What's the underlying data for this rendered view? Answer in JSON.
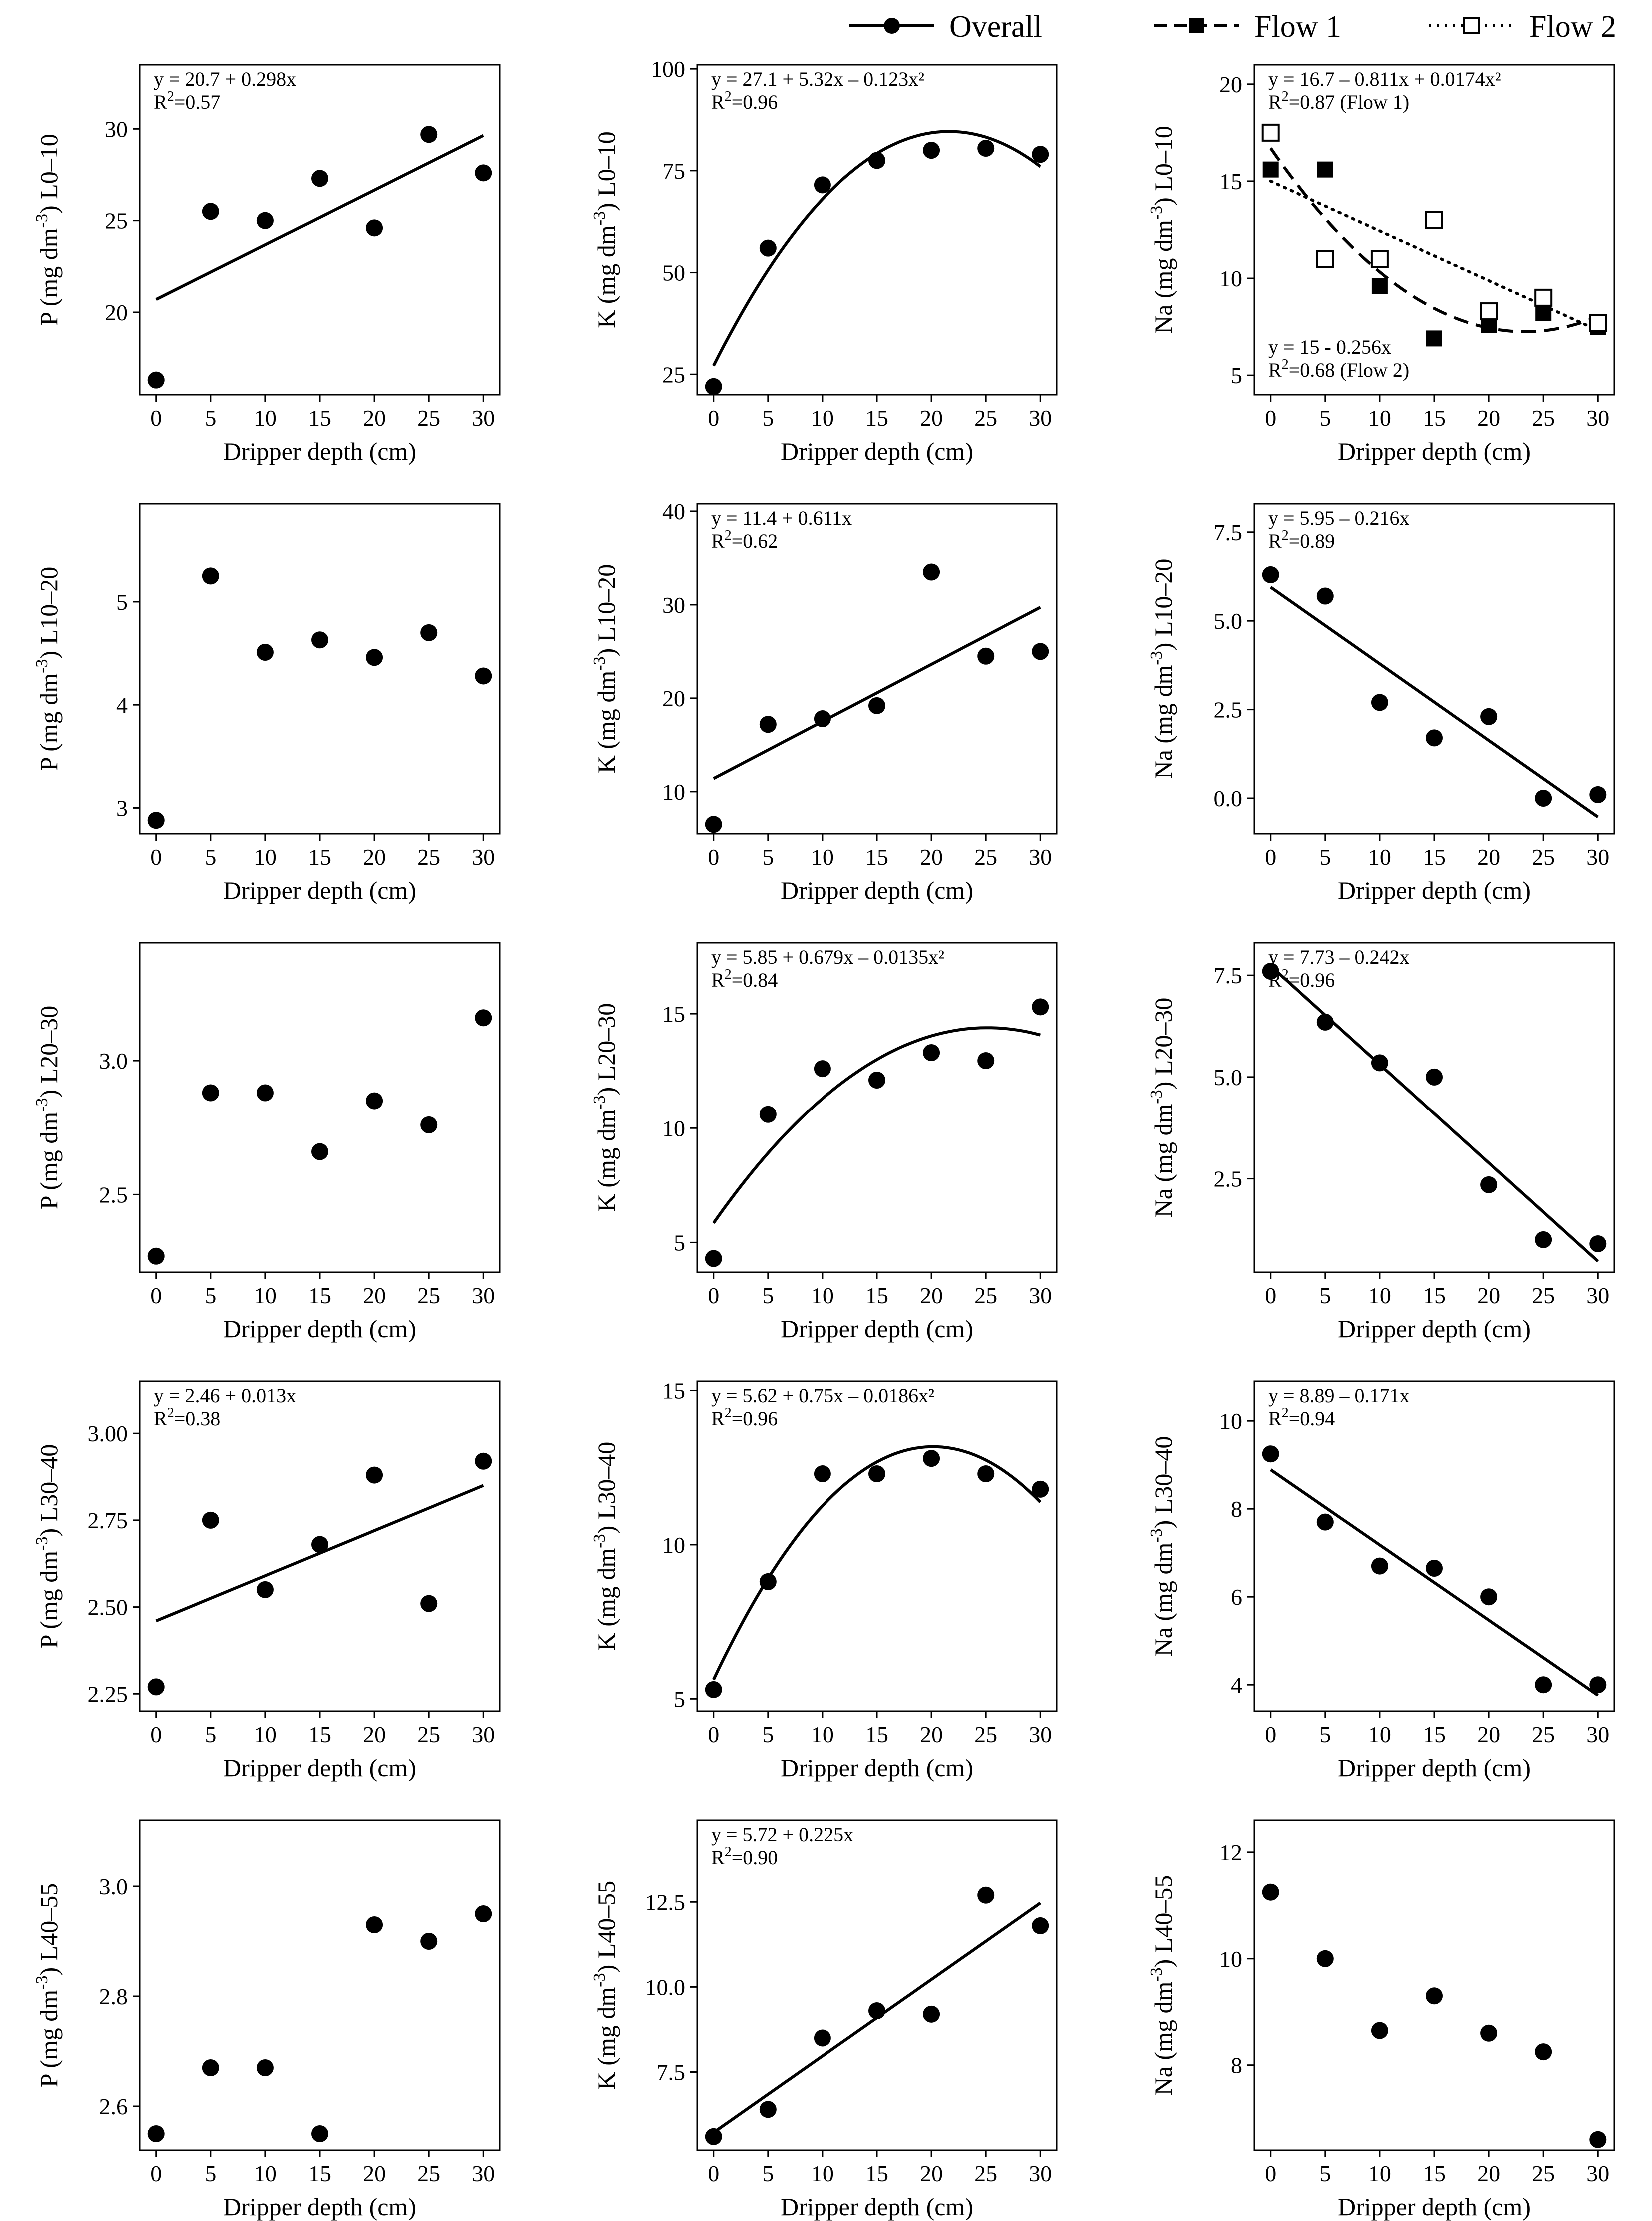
{
  "legend": {
    "entries": [
      {
        "label": "Overall",
        "line": "solid",
        "marker": "circle"
      },
      {
        "label": "Flow 1",
        "line": "dashed",
        "marker": "square-filled"
      },
      {
        "label": "Flow 2",
        "line": "dotted",
        "marker": "square-open"
      }
    ]
  },
  "chart_data": [
    {
      "type": "scatter",
      "id": "p-l0-10",
      "ylabel": "P (mg dm-3) L0–10",
      "ylabel_parts": {
        "pre": "P (mg dm",
        "sup": "-3",
        "post": ") L0–10"
      },
      "xlabel": "Dripper depth (cm)",
      "x": [
        0,
        5,
        10,
        15,
        20,
        25,
        30
      ],
      "xlim": [
        -1.5,
        31.5
      ],
      "xticks": [
        0,
        5,
        10,
        15,
        20,
        25,
        30
      ],
      "ylim": [
        15.5,
        33.5
      ],
      "yticks": [
        20,
        25,
        30
      ],
      "series": [
        {
          "name": "Overall",
          "marker": "circle",
          "values": [
            16.3,
            25.5,
            25.0,
            27.3,
            24.6,
            29.7,
            27.6
          ],
          "fit": {
            "coef": [
              20.7,
              0.298
            ],
            "style": "solid"
          }
        }
      ],
      "equations": [
        {
          "text": "y = 20.7 + 0.298x",
          "r2": "0.57",
          "r2_suffix": ""
        }
      ]
    },
    {
      "type": "scatter",
      "id": "k-l0-10",
      "ylabel": "K (mg dm-3) L0–10",
      "ylabel_parts": {
        "pre": "K (mg dm",
        "sup": "-3",
        "post": ") L0–10"
      },
      "xlabel": "Dripper depth (cm)",
      "x": [
        0,
        5,
        10,
        15,
        20,
        25,
        30
      ],
      "xlim": [
        -1.5,
        31.5
      ],
      "xticks": [
        0,
        5,
        10,
        15,
        20,
        25,
        30
      ],
      "ylim": [
        20,
        101
      ],
      "yticks": [
        25,
        50,
        75,
        100
      ],
      "series": [
        {
          "name": "Overall",
          "marker": "circle",
          "values": [
            22,
            56,
            71.5,
            77.5,
            80,
            80.5,
            79
          ],
          "fit": {
            "coef": [
              27.1,
              5.32,
              -0.123
            ],
            "style": "solid"
          }
        }
      ],
      "equations": [
        {
          "text": "y = 27.1 + 5.32x – 0.123x²",
          "r2": "0.96",
          "r2_suffix": ""
        }
      ]
    },
    {
      "type": "scatter",
      "id": "na-l0-10",
      "ylabel": "Na (mg dm-3) L0–10",
      "ylabel_parts": {
        "pre": "Na (mg dm",
        "sup": "-3",
        "post": ") L0–10"
      },
      "xlabel": "Dripper depth (cm)",
      "x": [
        0,
        5,
        10,
        15,
        20,
        25,
        30
      ],
      "xlim": [
        -1.5,
        31.5
      ],
      "xticks": [
        0,
        5,
        10,
        15,
        20,
        25,
        30
      ],
      "ylim": [
        4,
        21
      ],
      "yticks": [
        5,
        10,
        15,
        20
      ],
      "series": [
        {
          "name": "Flow 1",
          "marker": "square-filled",
          "values": [
            15.6,
            15.6,
            9.6,
            6.9,
            7.6,
            8.2,
            7.5
          ],
          "fit": {
            "coef": [
              16.7,
              -0.811,
              0.0174
            ],
            "style": "dashed"
          }
        },
        {
          "name": "Flow 2",
          "marker": "square-open",
          "values": [
            17.5,
            11.0,
            11.0,
            13.0,
            8.3,
            9.0,
            7.7
          ],
          "fit": {
            "coef": [
              15,
              -0.256
            ],
            "style": "dotted"
          }
        }
      ],
      "equations": [
        {
          "text": "y = 16.7 – 0.811x + 0.0174x²",
          "r2": "0.87",
          "r2_suffix": " (Flow 1)"
        },
        {
          "text": "y = 15 - 0.256x",
          "r2": "0.68",
          "r2_suffix": " (Flow 2)"
        }
      ]
    },
    {
      "type": "scatter",
      "id": "p-l10-20",
      "ylabel": "P (mg dm-3) L10–20",
      "ylabel_parts": {
        "pre": "P (mg dm",
        "sup": "-3",
        "post": ") L10–20"
      },
      "xlabel": "Dripper depth (cm)",
      "x": [
        0,
        5,
        10,
        15,
        20,
        25,
        30
      ],
      "xlim": [
        -1.5,
        31.5
      ],
      "xticks": [
        0,
        5,
        10,
        15,
        20,
        25,
        30
      ],
      "ylim": [
        2.75,
        5.95
      ],
      "yticks": [
        3,
        4,
        5
      ],
      "series": [
        {
          "name": "Overall",
          "marker": "circle",
          "values": [
            2.88,
            5.25,
            4.51,
            4.63,
            4.46,
            4.7,
            4.28
          ]
        }
      ],
      "equations": []
    },
    {
      "type": "scatter",
      "id": "k-l10-20",
      "ylabel": "K (mg dm-3) L10–20",
      "ylabel_parts": {
        "pre": "K (mg dm",
        "sup": "-3",
        "post": ") L10–20"
      },
      "xlabel": "Dripper depth (cm)",
      "x": [
        0,
        5,
        10,
        15,
        20,
        25,
        30
      ],
      "xlim": [
        -1.5,
        31.5
      ],
      "xticks": [
        0,
        5,
        10,
        15,
        20,
        25,
        30
      ],
      "ylim": [
        5.5,
        40.8
      ],
      "yticks": [
        10,
        20,
        30,
        40
      ],
      "series": [
        {
          "name": "Overall",
          "marker": "circle",
          "values": [
            6.5,
            17.2,
            17.8,
            19.2,
            33.5,
            24.5,
            25.0
          ],
          "fit": {
            "coef": [
              11.4,
              0.611
            ],
            "style": "solid"
          }
        }
      ],
      "equations": [
        {
          "text": "y = 11.4 + 0.611x",
          "r2": "0.62",
          "r2_suffix": ""
        }
      ]
    },
    {
      "type": "scatter",
      "id": "na-l10-20",
      "ylabel": "Na (mg dm-3) L10–20",
      "ylabel_parts": {
        "pre": "Na (mg dm",
        "sup": "-3",
        "post": ") L10–20"
      },
      "xlabel": "Dripper depth (cm)",
      "x": [
        0,
        5,
        10,
        15,
        20,
        25,
        30
      ],
      "xlim": [
        -1.5,
        31.5
      ],
      "xticks": [
        0,
        5,
        10,
        15,
        20,
        25,
        30
      ],
      "yticks": [
        0.0,
        2.5,
        5.0,
        7.5
      ],
      "ytick_labels": [
        "0.0",
        "2.5",
        "5.0",
        "7.5"
      ],
      "ylim": [
        -1,
        8.3
      ],
      "series": [
        {
          "name": "Overall",
          "marker": "circle",
          "values": [
            6.3,
            5.7,
            2.7,
            1.7,
            2.3,
            0.0,
            0.1
          ],
          "fit": {
            "coef": [
              5.95,
              -0.216
            ],
            "style": "solid"
          }
        }
      ],
      "equations": [
        {
          "text": "y = 5.95 – 0.216x",
          "r2": "0.89",
          "r2_suffix": ""
        }
      ]
    },
    {
      "type": "scatter",
      "id": "p-l20-30",
      "ylabel": "P (mg dm-3) L20–30",
      "ylabel_parts": {
        "pre": "P (mg dm",
        "sup": "-3",
        "post": ") L20–30"
      },
      "xlabel": "Dripper depth (cm)",
      "x": [
        0,
        5,
        10,
        15,
        20,
        25,
        30
      ],
      "xlim": [
        -1.5,
        31.5
      ],
      "xticks": [
        0,
        5,
        10,
        15,
        20,
        25,
        30
      ],
      "ylim": [
        2.21,
        3.44
      ],
      "yticks": [
        2.5,
        3.0
      ],
      "ytick_labels": [
        "2.5",
        "3.0"
      ],
      "series": [
        {
          "name": "Overall",
          "marker": "circle",
          "values": [
            2.27,
            2.88,
            2.88,
            2.66,
            2.85,
            2.76,
            3.16
          ]
        }
      ],
      "equations": []
    },
    {
      "type": "scatter",
      "id": "k-l20-30",
      "ylabel": "K (mg dm-3) L20–30",
      "ylabel_parts": {
        "pre": "K (mg dm",
        "sup": "-3",
        "post": ") L20–30"
      },
      "xlabel": "Dripper depth (cm)",
      "x": [
        0,
        5,
        10,
        15,
        20,
        25,
        30
      ],
      "xlim": [
        -1.5,
        31.5
      ],
      "xticks": [
        0,
        5,
        10,
        15,
        20,
        25,
        30
      ],
      "ylim": [
        3.7,
        18.1
      ],
      "yticks": [
        5,
        10,
        15
      ],
      "series": [
        {
          "name": "Overall",
          "marker": "circle",
          "values": [
            4.3,
            10.6,
            12.6,
            12.1,
            13.3,
            12.95,
            15.3
          ],
          "fit": {
            "coef": [
              5.85,
              0.679,
              -0.0135
            ],
            "style": "solid"
          }
        }
      ],
      "equations": [
        {
          "text": "y = 5.85 + 0.679x – 0.0135x²",
          "r2": "0.84",
          "r2_suffix": ""
        }
      ]
    },
    {
      "type": "scatter",
      "id": "na-l20-30",
      "ylabel": "Na (mg dm-3) L20–30",
      "ylabel_parts": {
        "pre": "Na (mg dm",
        "sup": "-3",
        "post": ") L20–30"
      },
      "xlabel": "Dripper depth (cm)",
      "x": [
        0,
        5,
        10,
        15,
        20,
        25,
        30
      ],
      "xlim": [
        -1.5,
        31.5
      ],
      "xticks": [
        0,
        5,
        10,
        15,
        20,
        25,
        30
      ],
      "ylim": [
        0.2,
        8.3
      ],
      "yticks": [
        2.5,
        5.0,
        7.5
      ],
      "ytick_labels": [
        "2.5",
        "5.0",
        "7.5"
      ],
      "series": [
        {
          "name": "Overall",
          "marker": "circle",
          "values": [
            7.6,
            6.35,
            5.35,
            5.0,
            2.35,
            1.0,
            0.9
          ],
          "fit": {
            "coef": [
              7.73,
              -0.242
            ],
            "style": "solid"
          }
        }
      ],
      "equations": [
        {
          "text": "y = 7.73 – 0.242x",
          "r2": "0.96",
          "r2_suffix": ""
        }
      ]
    },
    {
      "type": "scatter",
      "id": "p-l30-40",
      "ylabel": "P (mg dm-3) L30–40",
      "ylabel_parts": {
        "pre": "P (mg dm",
        "sup": "-3",
        "post": ") L30–40"
      },
      "xlabel": "Dripper depth (cm)",
      "x": [
        0,
        5,
        10,
        15,
        20,
        25,
        30
      ],
      "xlim": [
        -1.5,
        31.5
      ],
      "xticks": [
        0,
        5,
        10,
        15,
        20,
        25,
        30
      ],
      "ylim": [
        2.2,
        3.15
      ],
      "yticks": [
        2.25,
        2.5,
        2.75,
        3.0
      ],
      "ytick_labels": [
        "2.25",
        "2.50",
        "2.75",
        "3.00"
      ],
      "series": [
        {
          "name": "Overall",
          "marker": "circle",
          "values": [
            2.27,
            2.75,
            2.55,
            2.68,
            2.88,
            2.51,
            2.92
          ],
          "fit": {
            "coef": [
              2.46,
              0.013
            ],
            "style": "solid"
          }
        }
      ],
      "equations": [
        {
          "text": "y = 2.46 + 0.013x",
          "r2": "0.38",
          "r2_suffix": ""
        }
      ]
    },
    {
      "type": "scatter",
      "id": "k-l30-40",
      "ylabel": "K (mg dm-3) L30–40",
      "ylabel_parts": {
        "pre": "K (mg dm",
        "sup": "-3",
        "post": ") L30–40"
      },
      "xlabel": "Dripper depth (cm)",
      "x": [
        0,
        5,
        10,
        15,
        20,
        25,
        30
      ],
      "xlim": [
        -1.5,
        31.5
      ],
      "xticks": [
        0,
        5,
        10,
        15,
        20,
        25,
        30
      ],
      "ylim": [
        4.6,
        15.3
      ],
      "yticks": [
        5,
        10,
        15
      ],
      "series": [
        {
          "name": "Overall",
          "marker": "circle",
          "values": [
            5.3,
            8.8,
            12.3,
            12.3,
            12.8,
            12.3,
            11.8
          ],
          "fit": {
            "coef": [
              5.62,
              0.75,
              -0.0186
            ],
            "style": "solid"
          }
        }
      ],
      "equations": [
        {
          "text": "y = 5.62 + 0.75x – 0.0186x²",
          "r2": "0.96",
          "r2_suffix": ""
        }
      ]
    },
    {
      "type": "scatter",
      "id": "na-l30-40",
      "ylabel": "Na (mg dm-3) L30–40",
      "ylabel_parts": {
        "pre": "Na (mg dm",
        "sup": "-3",
        "post": ") L30–40"
      },
      "xlabel": "Dripper depth (cm)",
      "x": [
        0,
        5,
        10,
        15,
        20,
        25,
        30
      ],
      "xlim": [
        -1.5,
        31.5
      ],
      "xticks": [
        0,
        5,
        10,
        15,
        20,
        25,
        30
      ],
      "ylim": [
        3.4,
        10.9
      ],
      "yticks": [
        4,
        6,
        8,
        10
      ],
      "series": [
        {
          "name": "Overall",
          "marker": "circle",
          "values": [
            9.25,
            7.7,
            6.7,
            6.65,
            6.0,
            4.0,
            4.0
          ],
          "fit": {
            "coef": [
              8.89,
              -0.171
            ],
            "style": "solid"
          }
        }
      ],
      "equations": [
        {
          "text": "y = 8.89 – 0.171x",
          "r2": "0.94",
          "r2_suffix": ""
        }
      ]
    },
    {
      "type": "scatter",
      "id": "p-l40-55",
      "ylabel": "P (mg dm-3) L40–55",
      "ylabel_parts": {
        "pre": "P (mg dm",
        "sup": "-3",
        "post": ") L40–55"
      },
      "xlabel": "Dripper depth (cm)",
      "x": [
        0,
        5,
        10,
        15,
        20,
        25,
        30
      ],
      "xlim": [
        -1.5,
        31.5
      ],
      "xticks": [
        0,
        5,
        10,
        15,
        20,
        25,
        30
      ],
      "ylim": [
        2.52,
        3.12
      ],
      "yticks": [
        2.6,
        2.8,
        3.0
      ],
      "ytick_labels": [
        "2.6",
        "2.8",
        "3.0"
      ],
      "series": [
        {
          "name": "Overall",
          "marker": "circle",
          "values": [
            2.55,
            2.67,
            2.67,
            2.55,
            2.93,
            2.9,
            2.95
          ]
        }
      ],
      "equations": []
    },
    {
      "type": "scatter",
      "id": "k-l40-55",
      "ylabel": "K (mg dm-3) L40–55",
      "ylabel_parts": {
        "pre": "K (mg dm",
        "sup": "-3",
        "post": ") L40–55"
      },
      "xlabel": "Dripper depth (cm)",
      "x": [
        0,
        5,
        10,
        15,
        20,
        25,
        30
      ],
      "xlim": [
        -1.5,
        31.5
      ],
      "xticks": [
        0,
        5,
        10,
        15,
        20,
        25,
        30
      ],
      "ylim": [
        5.2,
        14.9
      ],
      "yticks": [
        7.5,
        10.0,
        12.5
      ],
      "ytick_labels": [
        "7.5",
        "10.0",
        "12.5"
      ],
      "series": [
        {
          "name": "Overall",
          "marker": "circle",
          "values": [
            5.6,
            6.4,
            8.5,
            9.3,
            9.2,
            12.7,
            11.8
          ],
          "fit": {
            "coef": [
              5.72,
              0.225
            ],
            "style": "solid"
          }
        }
      ],
      "equations": [
        {
          "text": "y = 5.72 + 0.225x",
          "r2": "0.90",
          "r2_suffix": ""
        }
      ]
    },
    {
      "type": "scatter",
      "id": "na-l40-55",
      "ylabel": "Na (mg dm-3) L40–55",
      "ylabel_parts": {
        "pre": "Na (mg dm",
        "sup": "-3",
        "post": ") L40–55"
      },
      "xlabel": "Dripper depth (cm)",
      "x": [
        0,
        5,
        10,
        15,
        20,
        25,
        30
      ],
      "xlim": [
        -1.5,
        31.5
      ],
      "xticks": [
        0,
        5,
        10,
        15,
        20,
        25,
        30
      ],
      "ylim": [
        6.4,
        12.6
      ],
      "yticks": [
        8,
        10,
        12
      ],
      "series": [
        {
          "name": "Overall",
          "marker": "circle",
          "values": [
            11.25,
            10.0,
            8.65,
            9.3,
            8.6,
            8.25,
            6.6
          ]
        }
      ],
      "equations": []
    }
  ]
}
